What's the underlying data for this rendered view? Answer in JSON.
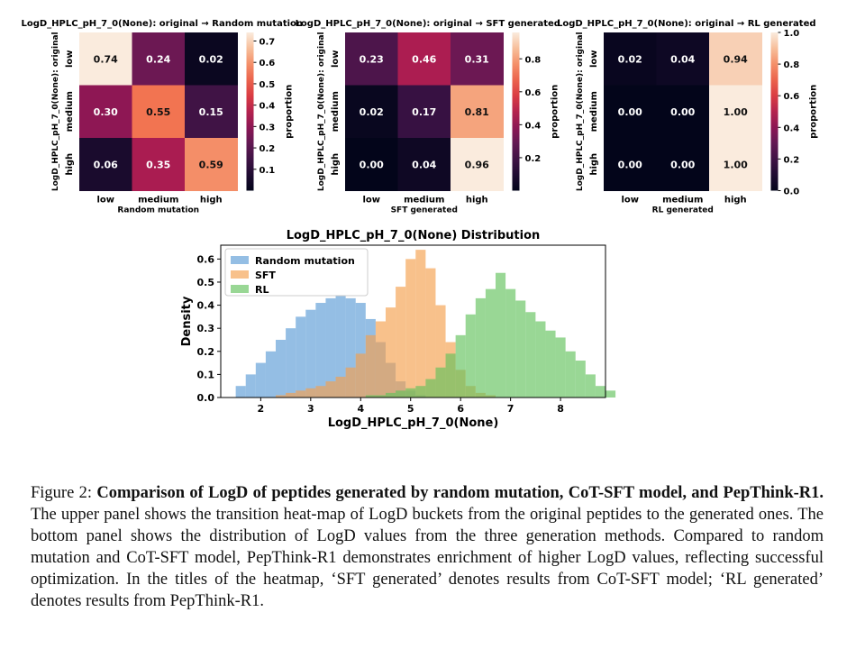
{
  "caption": {
    "label": "Figure 2:",
    "bold": "Comparison of LogD of peptides generated by random mutation, CoT-SFT model, and PepThink-R1.",
    "text": "The upper panel shows the transition heat-map of LogD buckets from the original peptides to the generated ones. The bottom panel shows the distribution of LogD values from the three generation methods. Compared to random mutation and CoT-SFT model, PepThink-R1 demonstrates enrichment of higher LogD values, reflecting successful optimization. In the titles of the heatmap, ‘SFT generated’ denotes results from CoT-SFT model; ‘RL generated’ denotes results from PepThink-R1."
  },
  "chart_data": [
    {
      "type": "heatmap",
      "title": "LogD_HPLC_pH_7_0(None): original → Random mutation",
      "ylabel": "LogD_HPLC_pH_7_0(None): original",
      "xlabel": "Random mutation",
      "rows": [
        "low",
        "medium",
        "high"
      ],
      "cols": [
        "low",
        "medium",
        "high"
      ],
      "values": [
        [
          0.74,
          0.24,
          0.02
        ],
        [
          0.3,
          0.55,
          0.15
        ],
        [
          0.06,
          0.35,
          0.59
        ]
      ],
      "colorbar": {
        "label": "proportion",
        "range": [
          0.0,
          0.74
        ],
        "ticks": [
          "0.1",
          "0.2",
          "0.3",
          "0.4",
          "0.5",
          "0.6",
          "0.7"
        ]
      }
    },
    {
      "type": "heatmap",
      "title": "LogD_HPLC_pH_7_0(None): original → SFT generated",
      "ylabel": "LogD_HPLC_pH_7_0(None): original",
      "xlabel": "SFT generated",
      "rows": [
        "low",
        "medium",
        "high"
      ],
      "cols": [
        "low",
        "medium",
        "high"
      ],
      "values": [
        [
          0.23,
          0.46,
          0.31
        ],
        [
          0.02,
          0.17,
          0.81
        ],
        [
          0.0,
          0.04,
          0.96
        ]
      ],
      "colorbar": {
        "label": "proportion",
        "range": [
          0.0,
          0.96
        ],
        "ticks": [
          "0.2",
          "0.4",
          "0.6",
          "0.8"
        ]
      }
    },
    {
      "type": "heatmap",
      "title": "LogD_HPLC_pH_7_0(None): original → RL generated",
      "ylabel": "LogD_HPLC_pH_7_0(None): original",
      "xlabel": "RL generated",
      "rows": [
        "low",
        "medium",
        "high"
      ],
      "cols": [
        "low",
        "medium",
        "high"
      ],
      "values": [
        [
          0.02,
          0.04,
          0.94
        ],
        [
          0.0,
          0.0,
          1.0
        ],
        [
          0.0,
          0.0,
          1.0
        ]
      ],
      "colorbar": {
        "label": "proportion",
        "range": [
          0.0,
          1.0
        ],
        "ticks": [
          "0.0",
          "0.2",
          "0.4",
          "0.6",
          "0.8",
          "1.0"
        ]
      }
    },
    {
      "type": "histogram",
      "title": "LogD_HPLC_pH_7_0(None) Distribution",
      "xlabel": "LogD_HPLC_pH_7_0(None)",
      "ylabel": "Density",
      "xlim": [
        1.2,
        8.9
      ],
      "ylim": [
        0,
        0.66
      ],
      "xticks": [
        "2",
        "3",
        "4",
        "5",
        "6",
        "7",
        "8"
      ],
      "yticks": [
        "0.0",
        "0.1",
        "0.2",
        "0.3",
        "0.4",
        "0.5",
        "0.6"
      ],
      "legend_position": "upper-left",
      "series": [
        {
          "name": "Random mutation",
          "color": "#5b9bd5",
          "start": 1.5,
          "width": 0.2,
          "values": [
            0.05,
            0.1,
            0.15,
            0.2,
            0.25,
            0.3,
            0.35,
            0.38,
            0.41,
            0.43,
            0.44,
            0.43,
            0.41,
            0.34,
            0.24,
            0.15,
            0.07,
            0.03,
            0.01
          ]
        },
        {
          "name": "SFT",
          "color": "#f5a04d",
          "start": 2.3,
          "width": 0.2,
          "values": [
            0.01,
            0.02,
            0.03,
            0.04,
            0.05,
            0.07,
            0.09,
            0.13,
            0.19,
            0.27,
            0.33,
            0.39,
            0.48,
            0.6,
            0.64,
            0.56,
            0.4,
            0.24,
            0.12,
            0.05,
            0.02,
            0.01
          ]
        },
        {
          "name": "RL",
          "color": "#62c25c",
          "start": 4.1,
          "width": 0.2,
          "values": [
            0.01,
            0.01,
            0.02,
            0.03,
            0.04,
            0.05,
            0.08,
            0.13,
            0.19,
            0.27,
            0.36,
            0.43,
            0.47,
            0.54,
            0.47,
            0.42,
            0.37,
            0.33,
            0.29,
            0.26,
            0.2,
            0.16,
            0.1,
            0.05,
            0.03
          ]
        }
      ]
    }
  ]
}
